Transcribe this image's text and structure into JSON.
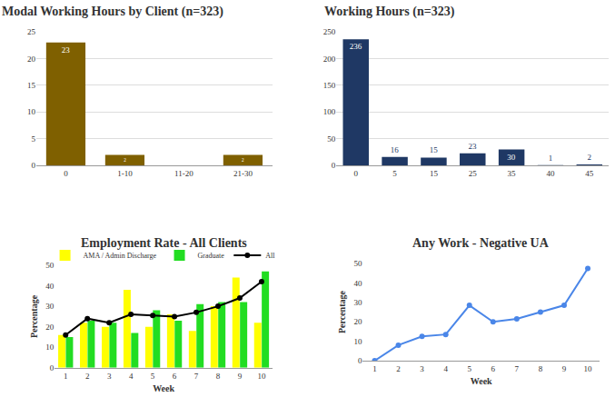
{
  "chart_data": [
    {
      "type": "bar",
      "title": "Modal Working Hours by Client (n=323)",
      "categories": [
        "0",
        "1-10",
        "11-20",
        "21-30"
      ],
      "values": [
        23,
        2,
        0,
        2
      ],
      "color": "#7f6000",
      "ylim": [
        0,
        25
      ],
      "yticks": [
        0,
        5,
        10,
        15,
        20,
        25
      ],
      "grid": true,
      "data_labels": true
    },
    {
      "type": "bar",
      "title": "Working Hours (n=323)",
      "categories": [
        "0",
        "5",
        "15",
        "25",
        "35",
        "40",
        "45"
      ],
      "values": [
        236,
        16,
        15,
        23,
        30,
        1,
        2
      ],
      "color": "#1f3864",
      "ylim": [
        0,
        250
      ],
      "yticks": [
        0,
        50,
        100,
        150,
        200,
        250
      ],
      "grid": true,
      "data_labels": true
    },
    {
      "type": "bar",
      "title": "Employment Rate - All Clients",
      "x_label": "Week",
      "y_label": "Percentage",
      "x": [
        1,
        2,
        3,
        4,
        5,
        6,
        7,
        8,
        9,
        10
      ],
      "xlim": [
        0.5,
        10.5
      ],
      "xticks": [
        1,
        2,
        3,
        4,
        5,
        6,
        7,
        8,
        9,
        10
      ],
      "ylim": [
        0,
        50
      ],
      "yticks": [
        0,
        10,
        20,
        30,
        40,
        50
      ],
      "grid": false,
      "legend": "top",
      "series": [
        {
          "name": "AMA / Admin Discharge",
          "type": "bar",
          "color": "#ffff00",
          "values": [
            16,
            22,
            20,
            38,
            20,
            26,
            18,
            30,
            44,
            22
          ]
        },
        {
          "name": "Graduate",
          "type": "bar",
          "color": "#22dd22",
          "values": [
            15,
            23,
            22,
            17,
            28,
            23,
            31,
            32,
            32,
            47
          ]
        },
        {
          "name": "All",
          "type": "line",
          "color": "#000000",
          "marker": "circle",
          "values": [
            16,
            24,
            22,
            26,
            25.5,
            25,
            27,
            30,
            34,
            42
          ]
        }
      ]
    },
    {
      "type": "line",
      "title": "Any Work - Negative UA",
      "x_label": "Week",
      "y_label": "Percentage",
      "x": [
        1,
        2,
        3,
        4,
        5,
        6,
        7,
        8,
        9,
        10
      ],
      "xlim": [
        0.5,
        10.5
      ],
      "xticks": [
        1,
        2,
        3,
        4,
        5,
        6,
        7,
        8,
        9,
        10
      ],
      "ylim": [
        0,
        50
      ],
      "yticks": [
        0,
        10,
        20,
        30,
        40,
        50
      ],
      "grid": false,
      "values": [
        0,
        8,
        12.5,
        13.5,
        28.5,
        20,
        21.5,
        25,
        28.5,
        47.5
      ],
      "color": "#4a86e8",
      "marker": "circle"
    }
  ]
}
